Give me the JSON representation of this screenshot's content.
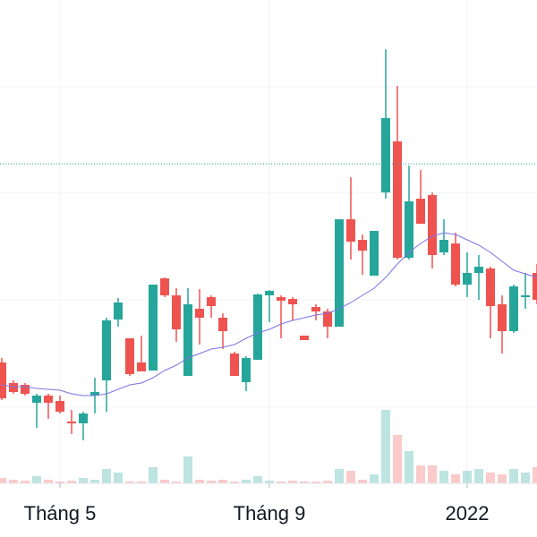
{
  "chart_data": {
    "type": "candlestick",
    "categories": [
      null,
      null,
      null,
      null,
      null,
      "Tháng 5",
      null,
      null,
      null,
      null,
      null,
      null,
      null,
      null,
      null,
      null,
      null,
      null,
      null,
      null,
      null,
      null,
      null,
      "Tháng 9",
      null,
      null,
      null,
      null,
      null,
      null,
      null,
      null,
      null,
      null,
      null,
      null,
      null,
      null,
      null,
      null,
      "2022",
      null,
      null,
      null,
      null,
      null,
      null
    ],
    "open": [
      195,
      172,
      170,
      150,
      158,
      152,
      129,
      127,
      158,
      175,
      243,
      222,
      195,
      186,
      289,
      270,
      180,
      255,
      268,
      245,
      205,
      173,
      198,
      270,
      268,
      266,
      225,
      257,
      252,
      235,
      355,
      332,
      292,
      385,
      442,
      312,
      378,
      382,
      318,
      328,
      282,
      295,
      300,
      260,
      230,
      268,
      295
    ],
    "high": [
      200,
      175,
      172,
      160,
      160,
      158,
      142,
      140,
      178,
      245,
      267,
      222,
      225,
      282,
      290,
      278,
      278,
      277,
      270,
      250,
      207,
      202,
      272,
      276,
      270,
      268,
      225,
      260,
      255,
      355,
      402,
      338,
      342,
      545,
      504,
      415,
      410,
      385,
      355,
      340,
      318,
      315,
      302,
      270,
      282,
      295,
      305
    ],
    "low": [
      153,
      160,
      158,
      122,
      132,
      138,
      115,
      108,
      138,
      140,
      235,
      180,
      185,
      186,
      268,
      218,
      180,
      215,
      245,
      210,
      180,
      163,
      198,
      240,
      222,
      242,
      220,
      242,
      222,
      235,
      310,
      293,
      292,
      378,
      310,
      310,
      350,
      300,
      315,
      280,
      268,
      265,
      222,
      205,
      228,
      255,
      260
    ],
    "close": [
      155,
      162,
      160,
      158,
      150,
      140,
      127,
      138,
      162,
      242,
      262,
      182,
      185,
      282,
      270,
      232,
      260,
      245,
      258,
      230,
      180,
      200,
      271,
      275,
      264,
      260,
      220,
      252,
      235,
      355,
      330,
      320,
      342,
      468,
      312,
      375,
      350,
      315,
      332,
      282,
      295,
      302,
      258,
      230,
      280,
      270,
      265
    ],
    "volume": [
      6,
      4,
      3,
      8,
      4,
      2,
      3,
      6,
      4,
      16,
      12,
      2,
      2,
      18,
      4,
      2,
      30,
      4,
      3,
      4,
      2,
      4,
      8,
      3,
      2,
      3,
      2,
      2,
      3,
      16,
      14,
      4,
      10,
      82,
      54,
      36,
      20,
      20,
      14,
      10,
      14,
      16,
      12,
      10,
      16,
      12,
      18
    ],
    "ma": [
      170,
      168,
      168,
      166,
      165,
      164,
      160,
      158,
      158,
      160,
      165,
      170,
      172,
      178,
      186,
      192,
      200,
      205,
      210,
      212,
      215,
      222,
      228,
      232,
      238,
      242,
      245,
      248,
      250,
      255,
      262,
      270,
      278,
      290,
      305,
      318,
      328,
      336,
      340,
      338,
      332,
      326,
      318,
      308,
      298,
      294,
      290
    ],
    "up_color": "#26a69a",
    "down_color": "#ef5350",
    "ma_color": "#7b73e6",
    "price_line": 417,
    "price_line_color": "#26a69a",
    "ylim": [
      0,
      600
    ],
    "ygrid": [
      145,
      265,
      385,
      503
    ],
    "grid": true
  }
}
